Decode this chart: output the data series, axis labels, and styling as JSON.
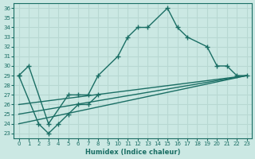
{
  "title": "",
  "xlabel": "Humidex (Indice chaleur)",
  "ylabel": "",
  "bg_color": "#cbe8e3",
  "line_color": "#1a6e64",
  "grid_color": "#b8d8d2",
  "xlim": [
    -0.5,
    23.5
  ],
  "ylim": [
    22.5,
    36.5
  ],
  "xticks": [
    0,
    1,
    2,
    3,
    4,
    5,
    6,
    7,
    8,
    9,
    10,
    11,
    12,
    13,
    14,
    15,
    16,
    17,
    18,
    19,
    20,
    21,
    22,
    23
  ],
  "yticks": [
    23,
    24,
    25,
    26,
    27,
    28,
    29,
    30,
    31,
    32,
    33,
    34,
    35,
    36
  ],
  "series1_x": [
    0,
    1,
    3,
    5,
    6,
    7,
    8,
    10,
    11,
    12,
    13,
    15,
    16,
    17,
    19,
    20,
    21,
    22,
    23
  ],
  "series1_y": [
    29,
    30,
    24,
    27,
    27,
    27,
    29,
    31,
    33,
    34,
    34,
    36,
    34,
    33,
    32,
    30,
    30,
    29,
    29
  ],
  "series2_x": [
    0,
    2,
    3,
    4,
    5,
    6,
    7,
    8
  ],
  "series2_y": [
    29,
    24,
    23,
    24,
    25,
    26,
    26,
    27
  ],
  "line1_x": [
    0,
    23
  ],
  "line1_y": [
    24,
    29
  ],
  "line2_x": [
    0,
    23
  ],
  "line2_y": [
    26,
    29
  ],
  "line3_x": [
    0,
    23
  ],
  "line3_y": [
    25,
    29
  ]
}
